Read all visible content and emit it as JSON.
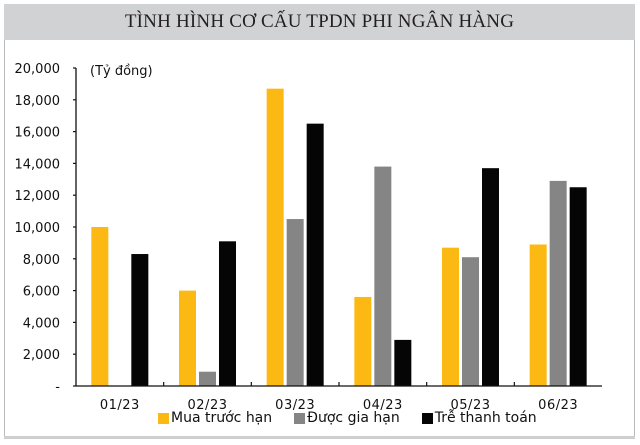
{
  "title": "TÌNH HÌNH CƠ CẤU TPDN PHI NGÂN HÀNG",
  "unit_label": "(Tỷ đồng)",
  "colors": {
    "mua_truoc_han": "#fdb913",
    "duoc_gia_han": "#858585",
    "tre_thanh_toan": "#050505",
    "title_bg": "#d1d2d4"
  },
  "y_ticks": [
    "20,000",
    "18,000",
    "16,000",
    "14,000",
    "12,000",
    "10,000",
    "8,000",
    "6,000",
    "4,000",
    "2,000",
    "-"
  ],
  "x_labels": [
    "01/23",
    "02/23",
    "03/23",
    "04/23",
    "05/23",
    "06/23"
  ],
  "legend": [
    {
      "label": "Mua trước hạn",
      "color": "#fdb913"
    },
    {
      "label": "Được gia hạn",
      "color": "#858585"
    },
    {
      "label": "Trễ thanh toán",
      "color": "#050505"
    }
  ],
  "chart_data": {
    "type": "bar",
    "title": "TÌNH HÌNH CƠ CẤU TPDN PHI NGÂN HÀNG",
    "xlabel": "",
    "ylabel": "(Tỷ đồng)",
    "ylim": [
      0,
      20000
    ],
    "grid": false,
    "legend_position": "bottom",
    "categories": [
      "01/23",
      "02/23",
      "03/23",
      "04/23",
      "05/23",
      "06/23"
    ],
    "series": [
      {
        "name": "Mua trước hạn",
        "values": [
          10000,
          6000,
          18700,
          5600,
          8700,
          8900
        ]
      },
      {
        "name": "Được gia hạn",
        "values": [
          0,
          900,
          10500,
          13800,
          8100,
          12900
        ]
      },
      {
        "name": "Trễ thanh toán",
        "values": [
          8300,
          9100,
          16500,
          2900,
          13700,
          12500
        ]
      }
    ]
  }
}
